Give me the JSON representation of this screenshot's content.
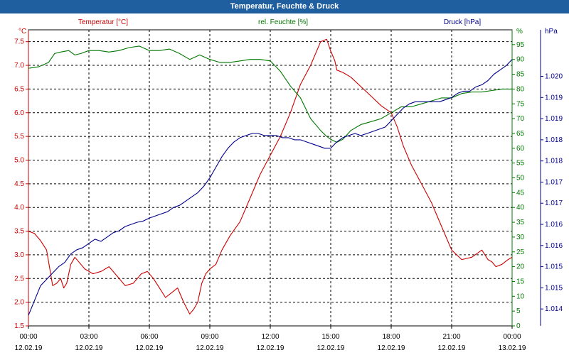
{
  "title": "Temperatur, Feuchte & Druck",
  "colors": {
    "background": "#ffffff",
    "title_bar": "#1f5fa0",
    "temperature": "#cc0000",
    "humidity": "#007700",
    "pressure": "#00008b",
    "grid": "#000000"
  },
  "chart_data": {
    "type": "line",
    "title": "Temperatur, Feuchte & Druck",
    "grid": true,
    "x_ticks": [
      {
        "time": "00:00",
        "date": "12.02.19"
      },
      {
        "time": "03:00",
        "date": "12.02.19"
      },
      {
        "time": "06:00",
        "date": "12.02.19"
      },
      {
        "time": "09:00",
        "date": "12.02.19"
      },
      {
        "time": "12:00",
        "date": "12.02.19"
      },
      {
        "time": "15:00",
        "date": "12.02.19"
      },
      {
        "time": "18:00",
        "date": "12.02.19"
      },
      {
        "time": "21:00",
        "date": "12.02.19"
      },
      {
        "time": "00:00",
        "date": "13.02.19"
      }
    ],
    "xlim_hours": [
      0,
      24
    ],
    "axes": {
      "temperature": {
        "label": "Temperatur [°C]",
        "unit": "°C",
        "ylim": [
          1.5,
          7.75
        ],
        "ticks": [
          "1.5",
          "2.0",
          "2.5",
          "3.0",
          "3.5",
          "4.0",
          "4.5",
          "5.0",
          "5.5",
          "6.0",
          "6.5",
          "7.0",
          "7.5"
        ],
        "tick_values": [
          1.5,
          2.0,
          2.5,
          3.0,
          3.5,
          4.0,
          4.5,
          5.0,
          5.5,
          6.0,
          6.5,
          7.0,
          7.5
        ]
      },
      "humidity": {
        "label": "rel. Feuchte [%]",
        "unit": "%",
        "ylim": [
          0,
          100
        ],
        "ticks": [
          "0",
          "5",
          "10",
          "15",
          "20",
          "25",
          "30",
          "35",
          "40",
          "45",
          "50",
          "55",
          "60",
          "65",
          "70",
          "75",
          "80",
          "85",
          "90",
          "95"
        ],
        "tick_values": [
          0,
          5,
          10,
          15,
          20,
          25,
          30,
          35,
          40,
          45,
          50,
          55,
          60,
          65,
          70,
          75,
          80,
          85,
          90,
          95
        ]
      },
      "pressure": {
        "label": "Druck [hPa]",
        "unit": "hPa",
        "ylim": [
          1013.5,
          1020.5
        ],
        "ticks": [
          "1.014",
          "1.015",
          "1.015",
          "1.016",
          "1.016",
          "1.017",
          "1.017",
          "1.018",
          "1.018",
          "1.019",
          "1.019",
          "1.020"
        ],
        "tick_values": [
          1013.9,
          1014.4,
          1014.9,
          1015.4,
          1015.9,
          1016.4,
          1016.9,
          1017.4,
          1017.9,
          1018.4,
          1018.9,
          1019.4
        ]
      }
    },
    "series": [
      {
        "name": "Temperatur",
        "axis": "temperature",
        "color": "#cc0000",
        "x": [
          0,
          0.3,
          0.6,
          0.9,
          1.1,
          1.2,
          1.4,
          1.6,
          1.75,
          1.9,
          2.1,
          2.3,
          2.6,
          2.8,
          3.2,
          3.6,
          4.0,
          4.4,
          4.8,
          5.2,
          5.6,
          5.9,
          6.2,
          6.5,
          6.8,
          7.1,
          7.4,
          7.7,
          8.0,
          8.2,
          8.4,
          8.6,
          8.8,
          9.0,
          9.3,
          9.6,
          10.0,
          10.5,
          11.0,
          11.5,
          12.0,
          12.5,
          13.0,
          13.5,
          14.0,
          14.5,
          14.8,
          15.0,
          15.2,
          15.3,
          15.6,
          16.0,
          16.5,
          17.0,
          17.5,
          18.0,
          18.3,
          18.6,
          19.0,
          19.5,
          20.0,
          20.5,
          21.0,
          21.5,
          22.0,
          22.5,
          22.8,
          23.0,
          23.2,
          23.5,
          23.8,
          24.0
        ],
        "values": [
          3.5,
          3.45,
          3.3,
          3.1,
          2.6,
          2.35,
          2.4,
          2.5,
          2.3,
          2.4,
          2.8,
          2.95,
          2.8,
          2.7,
          2.6,
          2.65,
          2.75,
          2.55,
          2.35,
          2.4,
          2.6,
          2.65,
          2.5,
          2.3,
          2.1,
          2.2,
          2.3,
          2.0,
          1.75,
          1.85,
          2.0,
          2.4,
          2.6,
          2.7,
          2.8,
          3.1,
          3.4,
          3.7,
          4.2,
          4.7,
          5.1,
          5.5,
          6.0,
          6.6,
          7.0,
          7.5,
          7.55,
          7.3,
          7.1,
          6.9,
          6.85,
          6.75,
          6.55,
          6.35,
          6.15,
          6.0,
          5.7,
          5.3,
          4.9,
          4.5,
          4.1,
          3.6,
          3.1,
          2.9,
          2.95,
          3.1,
          2.9,
          2.85,
          2.75,
          2.8,
          2.9,
          2.95
        ]
      },
      {
        "name": "rel. Feuchte",
        "axis": "humidity",
        "color": "#007700",
        "x": [
          0,
          0.5,
          1.0,
          1.3,
          1.6,
          2.0,
          2.3,
          2.6,
          3.0,
          3.5,
          4.0,
          4.5,
          5.0,
          5.5,
          6.0,
          6.5,
          7.0,
          7.5,
          8.0,
          8.5,
          9.0,
          9.5,
          10.0,
          10.5,
          11.0,
          11.5,
          12.0,
          12.5,
          13.0,
          13.5,
          14.0,
          14.5,
          14.8,
          15.0,
          15.3,
          15.6,
          16.0,
          16.5,
          17.0,
          17.5,
          18.0,
          18.5,
          19.0,
          19.5,
          20.0,
          20.5,
          21.0,
          21.5,
          22.0,
          22.5,
          23.0,
          23.5,
          24.0
        ],
        "values": [
          87,
          87.5,
          89,
          92,
          92.5,
          93,
          91.5,
          92,
          93,
          93,
          92.5,
          93,
          94,
          94.5,
          93,
          93,
          93.5,
          92,
          90,
          91.5,
          90,
          89,
          89,
          89.5,
          90,
          90,
          89.5,
          86,
          81,
          77,
          70,
          66,
          64,
          63,
          62,
          63,
          66,
          68,
          69,
          70,
          72,
          74,
          74,
          75,
          76,
          77,
          77,
          78.5,
          79,
          79,
          79.5,
          80,
          80
        ]
      },
      {
        "name": "Druck",
        "axis": "pressure",
        "color": "#00008b",
        "x": [
          0,
          0.3,
          0.6,
          0.9,
          1.2,
          1.5,
          1.8,
          2.1,
          2.4,
          2.7,
          3.0,
          3.3,
          3.6,
          3.9,
          4.2,
          4.5,
          4.8,
          5.1,
          5.4,
          5.7,
          6.0,
          6.3,
          6.6,
          6.9,
          7.2,
          7.5,
          7.8,
          8.1,
          8.4,
          8.7,
          9.0,
          9.3,
          9.6,
          9.9,
          10.2,
          10.5,
          10.8,
          11.1,
          11.4,
          11.7,
          12.0,
          12.3,
          12.6,
          12.9,
          13.2,
          13.5,
          13.8,
          14.1,
          14.4,
          14.7,
          15.0,
          15.3,
          15.6,
          15.9,
          16.2,
          16.5,
          16.8,
          17.1,
          17.4,
          17.7,
          18.0,
          18.3,
          18.6,
          18.9,
          19.2,
          19.5,
          19.8,
          20.1,
          20.4,
          20.7,
          21.0,
          21.3,
          21.6,
          21.9,
          22.2,
          22.5,
          22.8,
          23.1,
          23.4,
          23.7,
          24.0
        ],
        "values": [
          1013.75,
          1014.1,
          1014.45,
          1014.6,
          1014.75,
          1014.9,
          1015.0,
          1015.2,
          1015.3,
          1015.35,
          1015.45,
          1015.55,
          1015.5,
          1015.6,
          1015.7,
          1015.75,
          1015.85,
          1015.9,
          1015.95,
          1015.98,
          1016.05,
          1016.1,
          1016.15,
          1016.2,
          1016.3,
          1016.35,
          1016.45,
          1016.55,
          1016.65,
          1016.8,
          1017.0,
          1017.25,
          1017.5,
          1017.7,
          1017.85,
          1017.95,
          1018.0,
          1018.05,
          1018.05,
          1018.0,
          1018.0,
          1018.0,
          1017.95,
          1017.95,
          1017.9,
          1017.9,
          1017.85,
          1017.8,
          1017.75,
          1017.7,
          1017.7,
          1017.85,
          1017.95,
          1018.0,
          1018.05,
          1018.0,
          1018.05,
          1018.1,
          1018.15,
          1018.2,
          1018.35,
          1018.5,
          1018.65,
          1018.75,
          1018.8,
          1018.8,
          1018.8,
          1018.8,
          1018.8,
          1018.85,
          1018.9,
          1019.0,
          1019.05,
          1019.05,
          1019.15,
          1019.2,
          1019.3,
          1019.45,
          1019.55,
          1019.65,
          1019.8
        ]
      }
    ]
  }
}
